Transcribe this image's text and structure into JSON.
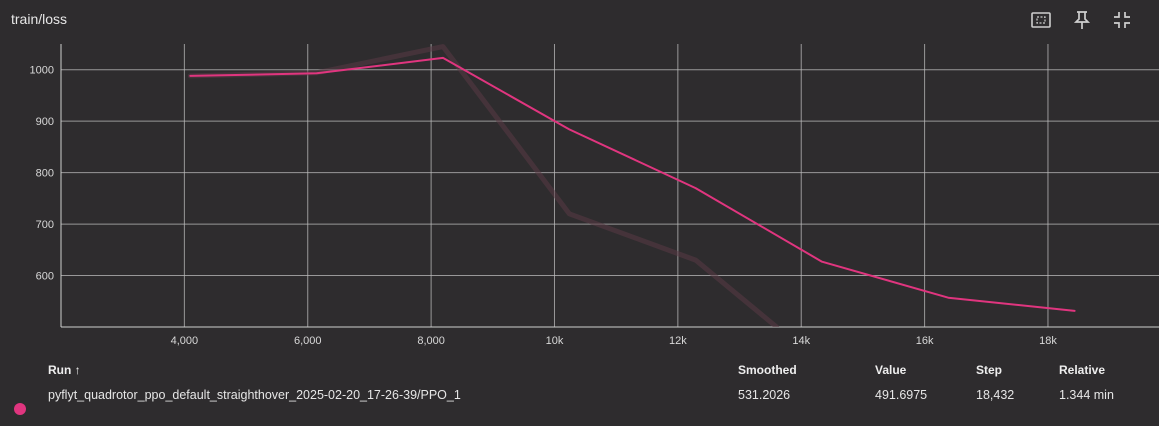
{
  "card": {
    "title": "train/loss",
    "tools": [
      "fit-domain-icon",
      "pin-icon",
      "collapse-icon"
    ]
  },
  "chart_data": {
    "type": "line",
    "title": "train/loss",
    "xlim": [
      2000,
      19800
    ],
    "ylim": [
      500,
      1050
    ],
    "x_ticks": [
      4000,
      6000,
      8000,
      10000,
      12000,
      14000,
      16000,
      18000
    ],
    "x_tick_labels": [
      "4,000",
      "6,000",
      "8,000",
      "10k",
      "12k",
      "14k",
      "16k",
      "18k"
    ],
    "y_ticks": [
      600,
      700,
      800,
      900,
      1000
    ],
    "y_tick_labels": [
      "600",
      "700",
      "800",
      "900",
      "1000"
    ],
    "grid": true,
    "series": [
      {
        "name": "pyflyt_quadrotor_ppo_default_straighthover_2025-02-20_17-26-39/PPO_1",
        "color": "#e0357f",
        "smoothed": true,
        "x": [
          4096,
          6144,
          8192,
          10240,
          12288,
          14336,
          16384,
          18432
        ],
        "y": [
          988,
          993,
          1023,
          884,
          770,
          627,
          557,
          531.2
        ]
      },
      {
        "name": "raw",
        "color": "#5a3a45",
        "smoothed": false,
        "x": [
          4096,
          6144,
          8192,
          10240,
          12288,
          13600
        ],
        "y": [
          988,
          994,
          1045,
          720,
          630,
          500
        ]
      }
    ]
  },
  "table": {
    "headers": {
      "run": "Run ↑",
      "smoothed": "Smoothed",
      "value": "Value",
      "step": "Step",
      "relative": "Relative"
    },
    "rows": [
      {
        "color": "#e0357f",
        "run": "pyflyt_quadrotor_ppo_default_straighthover_2025-02-20_17-26-39/PPO_1",
        "smoothed": "531.2026",
        "value": "491.6975",
        "step": "18,432",
        "relative": "1.344 min"
      }
    ]
  }
}
